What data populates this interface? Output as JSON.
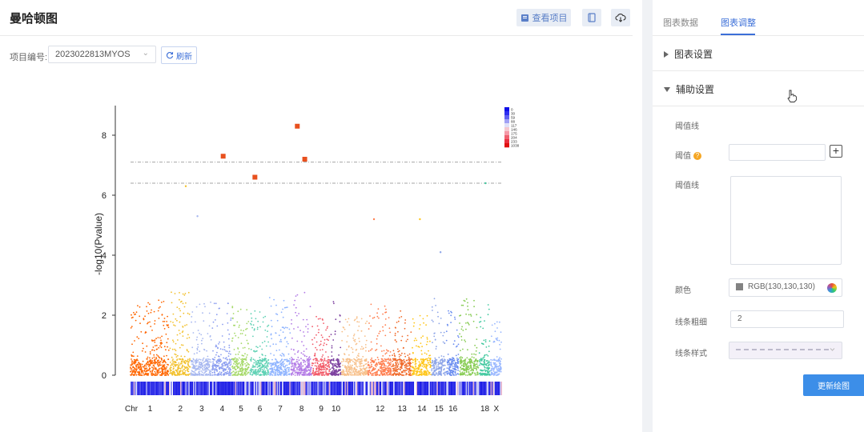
{
  "page": {
    "title": "曼哈顿图"
  },
  "toolbar": {
    "view_project_label": "查看项目",
    "icons": [
      "project-view-icon",
      "notebook-icon",
      "cloud-download-icon"
    ]
  },
  "project": {
    "label": "项目编号:",
    "value": "2023022813MYOS",
    "refresh_label": "刷新"
  },
  "tabs": [
    {
      "label": "图表数据",
      "active": false
    },
    {
      "label": "图表调整",
      "active": true
    }
  ],
  "sections": {
    "chart_settings": "图表设置",
    "aux_settings": "辅助设置"
  },
  "aux": {
    "threshold_line_title": "阈值线",
    "threshold_label": "阈值",
    "threshold_value": "",
    "threshold_lines_label": "阈值线",
    "color_label": "颜色",
    "color_value": "RGB(130,130,130)",
    "line_width_label": "线条粗细",
    "line_width_value": "2",
    "line_style_label": "线条样式"
  },
  "buttons": {
    "update_chart": "更新绘图"
  },
  "colors": {
    "accent": "#3c6fd8",
    "threshold_line": "#828282",
    "significant": "#e8501e"
  },
  "chart_data": {
    "type": "scatter",
    "title": "",
    "ylabel": "-log10(Pvalue)",
    "xlabel": "Chr",
    "ylim": [
      0,
      9
    ],
    "yticks": [
      0,
      2,
      4,
      6,
      8
    ],
    "thresholds": [
      7.1,
      6.4
    ],
    "chromosomes": [
      {
        "name": "1",
        "color": "#ff6600",
        "peak": 2.5
      },
      {
        "name": "2",
        "color": "#f2c12e",
        "peak": 2.8
      },
      {
        "name": "3",
        "color": "#a8b8f0",
        "peak": 2.6
      },
      {
        "name": "4",
        "color": "#8c9ef0",
        "peak": 2.4
      },
      {
        "name": "5",
        "color": "#a6d96a",
        "peak": 2.3
      },
      {
        "name": "6",
        "color": "#5fd1b4",
        "peak": 2.2
      },
      {
        "name": "7",
        "color": "#8fb4ff",
        "peak": 2.6
      },
      {
        "name": "8",
        "color": "#b37be6",
        "peak": 2.8
      },
      {
        "name": "9",
        "color": "#f25c6a",
        "peak": 2.0
      },
      {
        "name": "10",
        "color": "#7b3f9e",
        "peak": 2.9
      },
      {
        "name": "11",
        "color": "#f7c08a",
        "peak": 2.0
      },
      {
        "name": "12",
        "color": "#ff7f50",
        "peak": 2.4
      },
      {
        "name": "13",
        "color": "#f06a2a",
        "peak": 2.2
      },
      {
        "name": "14",
        "color": "#ffc61a",
        "peak": 2.0
      },
      {
        "name": "15",
        "color": "#8fa6e8",
        "peak": 2.6
      },
      {
        "name": "16",
        "color": "#6b8ef0",
        "peak": 2.2
      },
      {
        "name": "17",
        "color": "#88cc55",
        "peak": 2.6
      },
      {
        "name": "18",
        "color": "#43c9a0",
        "peak": 2.4
      },
      {
        "name": "X",
        "color": "#9ab8ff",
        "peak": 1.8
      }
    ],
    "xtick_labels": [
      "1",
      "2",
      "3",
      "4",
      "5",
      "6",
      "7",
      "8",
      "9",
      "10",
      "12",
      "13",
      "14",
      "15",
      "16",
      "18",
      "X"
    ],
    "outliers": [
      {
        "chr": "2",
        "y": 6.3,
        "color": "#f2c12e",
        "significant": false
      },
      {
        "chr": "3",
        "y": 5.3,
        "color": "#a8b8f0",
        "significant": false
      },
      {
        "chr": "4",
        "y": 7.3,
        "color": "#e8501e",
        "significant": true
      },
      {
        "chr": "6",
        "y": 6.6,
        "color": "#e8501e",
        "significant": true
      },
      {
        "chr": "8",
        "y": 8.3,
        "color": "#e8501e",
        "significant": true
      },
      {
        "chr": "8",
        "y": 7.2,
        "color": "#e8501e",
        "significant": true
      },
      {
        "chr": "12",
        "y": 5.2,
        "color": "#ff7f50",
        "significant": false
      },
      {
        "chr": "14",
        "y": 5.2,
        "color": "#ffc61a",
        "significant": false
      },
      {
        "chr": "15",
        "y": 4.1,
        "color": "#8fa6e8",
        "significant": false
      },
      {
        "chr": "18",
        "y": 6.4,
        "color": "#43c9a0",
        "significant": false
      }
    ],
    "legend": {
      "placement": "top-right",
      "labels": [
        "0",
        "30",
        "59",
        "88",
        "117",
        "146",
        "175",
        "204",
        "233",
        "1038"
      ]
    }
  }
}
